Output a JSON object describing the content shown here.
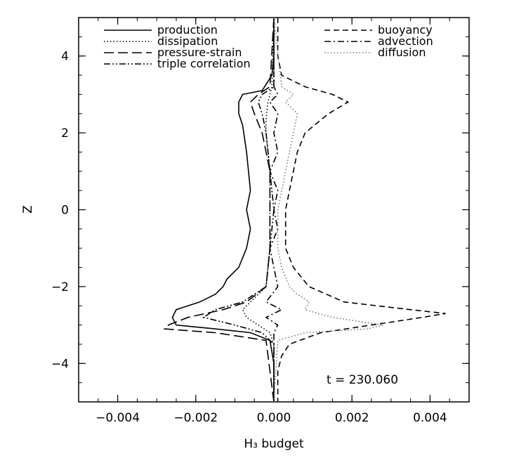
{
  "chart_data": {
    "type": "line",
    "title": "",
    "xlabel": "H₃ budget",
    "ylabel": "Z",
    "xlim": [
      -0.005,
      0.005
    ],
    "ylim": [
      -5,
      5
    ],
    "x_ticks": [
      -0.004,
      -0.002,
      0.0,
      0.002,
      0.004
    ],
    "x_tick_labels": [
      "−0.004",
      "−0.002",
      "0.000",
      "0.002",
      "0.004"
    ],
    "y_ticks": [
      -4,
      -2,
      0,
      2,
      4
    ],
    "y_tick_labels": [
      "−4",
      "−2",
      "0",
      "2",
      "4"
    ],
    "grid": false,
    "legend_placement": "top",
    "annotation": "t = 230.060",
    "series": [
      {
        "name": "production",
        "style": "solid",
        "color": "#000000",
        "y": [
          5,
          4,
          3.5,
          3.1,
          3.0,
          2.9,
          2.8,
          2.5,
          2.2,
          1.5,
          1.0,
          0.5,
          0.0,
          -0.5,
          -1.0,
          -1.5,
          -1.8,
          -2.0,
          -2.2,
          -2.4,
          -2.6,
          -2.8,
          -3.0,
          -3.1,
          -3.2,
          -3.4,
          -4,
          -5
        ],
        "x": [
          0,
          0,
          -5e-05,
          -0.0003,
          -0.0008,
          -0.00085,
          -0.0009,
          -0.0009,
          -0.0008,
          -0.0007,
          -0.00065,
          -0.0006,
          -0.0007,
          -0.0006,
          -0.0007,
          -0.0009,
          -0.0012,
          -0.0013,
          -0.0015,
          -0.0019,
          -0.0025,
          -0.0026,
          -0.0025,
          -0.0015,
          -0.0006,
          -0.0001,
          0,
          0
        ]
      },
      {
        "name": "dissipation",
        "style": "dotted",
        "color": "#000000",
        "y": [
          5,
          3.2,
          3.0,
          2.8,
          2.4,
          2.0,
          1.0,
          0.0,
          -1.0,
          -2.0,
          -2.4,
          -2.6,
          -2.8,
          -3.0,
          -3.2,
          -3.5,
          -5
        ],
        "x": [
          0,
          -5e-05,
          -0.0001,
          -0.00015,
          -0.0002,
          -0.0002,
          -0.0001,
          -0.0001,
          -0.0001,
          -0.0002,
          -0.0006,
          -0.0008,
          -0.0007,
          -0.0004,
          -0.0001,
          0,
          0
        ]
      },
      {
        "name": "pressure-strain",
        "style": "longdash",
        "color": "#000000",
        "y": [
          5,
          3.2,
          3.0,
          2.8,
          2.5,
          2.0,
          1.5,
          1.0,
          0.0,
          -1.0,
          -2.0,
          -2.4,
          -2.6,
          -2.8,
          -3.0,
          -3.1,
          -3.2,
          -3.4,
          -5
        ],
        "x": [
          0,
          -0.0001,
          -0.0004,
          -0.0006,
          -0.0005,
          -0.0003,
          -0.0002,
          -0.0001,
          -0.0001,
          -0.0001,
          -0.0002,
          -0.0007,
          -0.0013,
          -0.0022,
          -0.0027,
          -0.0028,
          -0.0015,
          -0.0002,
          0
        ]
      },
      {
        "name": "triple correlation",
        "style": "dashdotdot",
        "color": "#000000",
        "y": [
          5,
          3.2,
          3.0,
          2.8,
          2.5,
          2.0,
          1.0,
          0.0,
          -1.0,
          -2.0,
          -2.4,
          -2.6,
          -2.8,
          -3.0,
          -3.2,
          -3.5,
          -5
        ],
        "x": [
          0,
          0,
          -0.0003,
          -0.0004,
          -0.0003,
          -0.0002,
          -0.0001,
          0,
          -0.0001,
          -0.0002,
          -0.0008,
          -0.0015,
          -0.0018,
          -0.001,
          -0.0003,
          0,
          0
        ]
      },
      {
        "name": "buoyancy",
        "style": "dashed",
        "color": "#000000",
        "y": [
          5,
          4.0,
          3.5,
          3.2,
          3.0,
          2.8,
          2.5,
          2.0,
          1.5,
          1.0,
          0.5,
          0.0,
          -0.5,
          -1.0,
          -1.5,
          -2.0,
          -2.4,
          -2.6,
          -2.7,
          -2.8,
          -3.0,
          -3.2,
          -3.5,
          -3.8,
          -4.2,
          -5
        ],
        "x": [
          0.0001,
          0.0001,
          0.0002,
          0.0008,
          0.0015,
          0.0019,
          0.0014,
          0.0008,
          0.0006,
          0.0005,
          0.0004,
          0.0003,
          0.0003,
          0.0003,
          0.0005,
          0.0009,
          0.0018,
          0.0035,
          0.0044,
          0.0038,
          0.0025,
          0.0012,
          0.0004,
          0.0002,
          0.0001,
          0.0001
        ]
      },
      {
        "name": "advection",
        "style": "dashdot",
        "color": "#000000",
        "y": [
          5,
          3.2,
          3.0,
          2.8,
          2.5,
          2.0,
          1.5,
          1.0,
          0.5,
          0.0,
          -0.5,
          -1.0,
          -1.5,
          -2.0,
          -2.4,
          -2.6,
          -2.8,
          -3.0,
          -3.2,
          -5
        ],
        "x": [
          0,
          0,
          0.0001,
          -0.0001,
          0.0001,
          0,
          0.0001,
          -0.0001,
          0.0001,
          0,
          0.0001,
          -0.0001,
          0,
          0.0001,
          -0.0002,
          0.0002,
          -0.0002,
          0.0001,
          0,
          0
        ]
      },
      {
        "name": "diffusion",
        "style": "dotted",
        "color": "#777777",
        "y": [
          5,
          3.2,
          3.0,
          2.8,
          2.5,
          2.0,
          1.5,
          1.0,
          0.5,
          0.0,
          -0.5,
          -1.0,
          -1.5,
          -2.0,
          -2.2,
          -2.4,
          -2.6,
          -2.8,
          -3.0,
          -3.1,
          -3.2,
          -3.4,
          -5
        ],
        "x": [
          0,
          0.0002,
          0.0005,
          0.0003,
          0.0006,
          0.0005,
          0.0004,
          0.0003,
          0.0002,
          0.0001,
          0.0001,
          0.0001,
          0.0002,
          0.0004,
          0.0006,
          0.0009,
          0.0008,
          0.0015,
          0.0028,
          0.0024,
          0.0008,
          0.0001,
          0
        ]
      }
    ]
  }
}
